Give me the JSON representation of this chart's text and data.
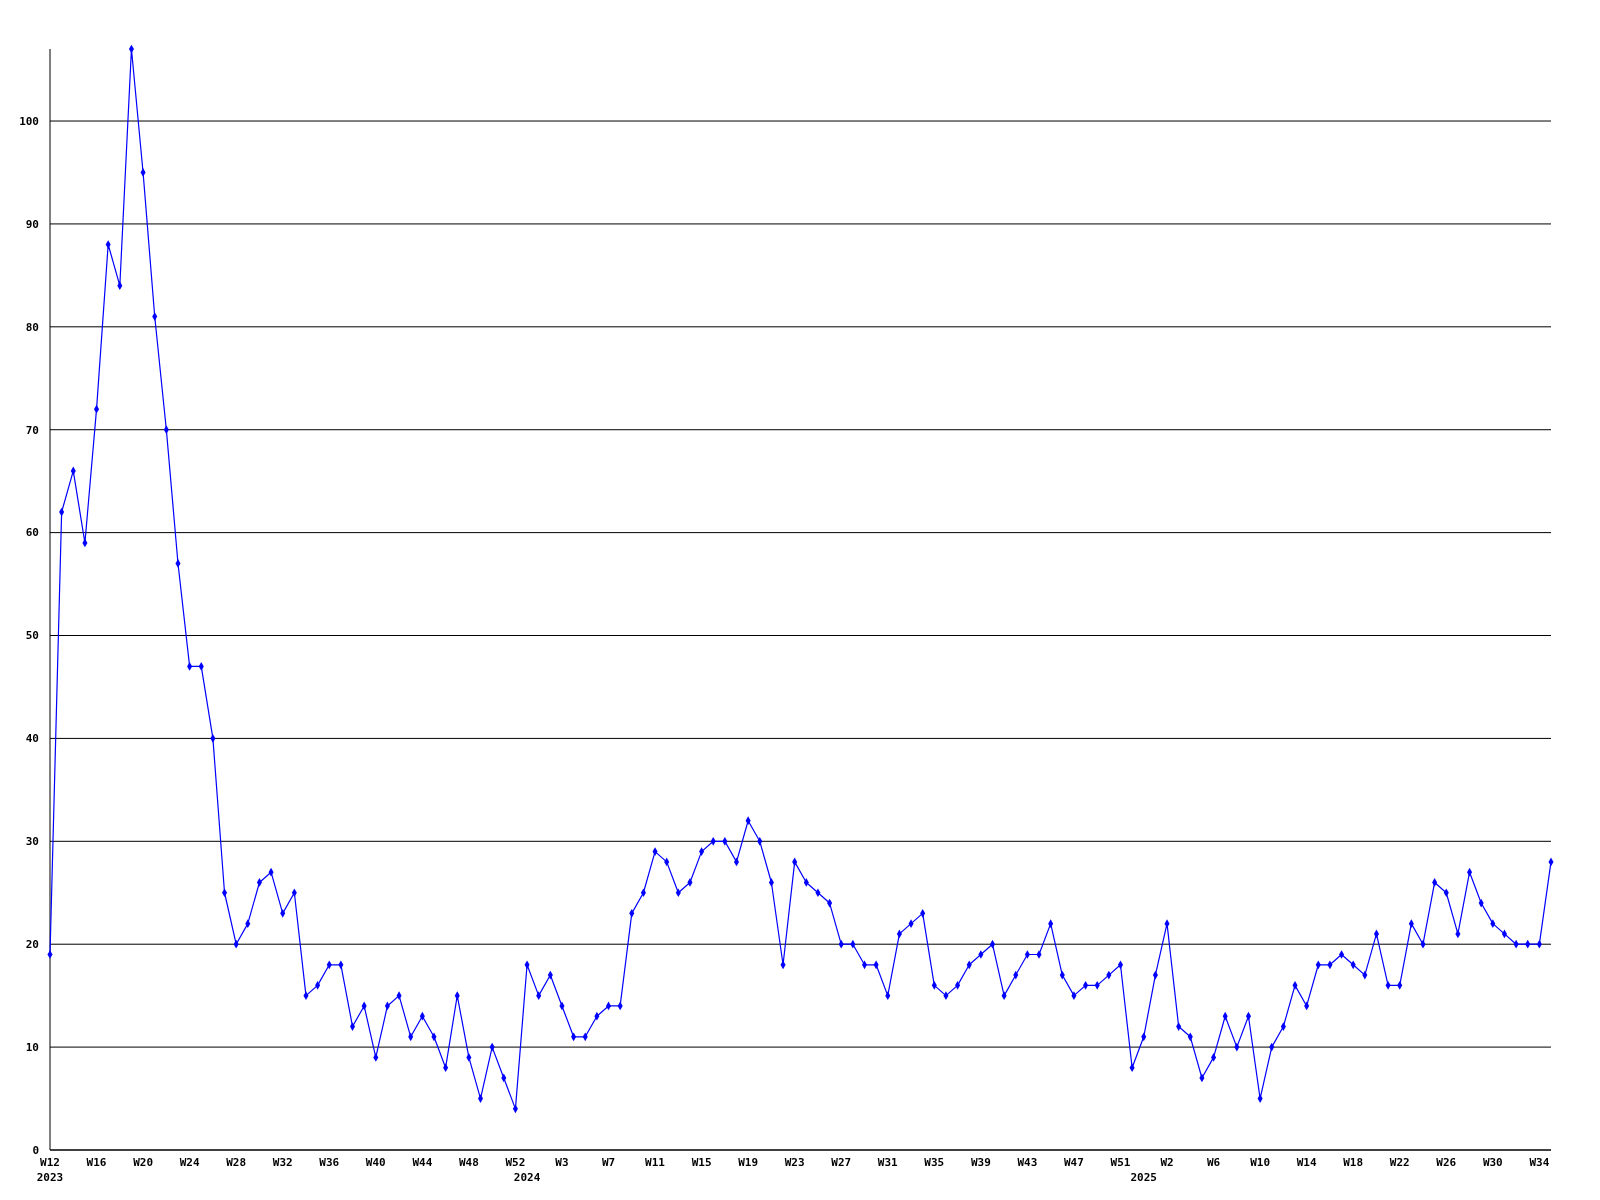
{
  "chart_data": {
    "type": "line",
    "categories": [
      "W12\n2023",
      null,
      null,
      null,
      "W16",
      null,
      null,
      null,
      "W20",
      null,
      null,
      null,
      "W24",
      null,
      null,
      null,
      "W28",
      null,
      null,
      null,
      "W32",
      null,
      null,
      null,
      "W36",
      null,
      null,
      null,
      "W40",
      null,
      null,
      null,
      "W44",
      null,
      null,
      null,
      "W48",
      null,
      null,
      null,
      "W52",
      "\n2024",
      null,
      null,
      "W3",
      null,
      null,
      null,
      "W7",
      null,
      null,
      null,
      "W11",
      null,
      null,
      null,
      "W15",
      null,
      null,
      null,
      "W19",
      null,
      null,
      null,
      "W23",
      null,
      null,
      null,
      "W27",
      null,
      null,
      null,
      "W31",
      null,
      null,
      null,
      "W35",
      null,
      null,
      null,
      "W39",
      null,
      null,
      null,
      "W43",
      null,
      null,
      null,
      "W47",
      null,
      null,
      null,
      "W51",
      null,
      "\n2025",
      null,
      "W2",
      null,
      null,
      null,
      "W6",
      null,
      null,
      null,
      "W10",
      null,
      null,
      null,
      "W14",
      null,
      null,
      null,
      "W18",
      null,
      null,
      null,
      "W22",
      null,
      null,
      null,
      "W26",
      null,
      null,
      null,
      "W30",
      null,
      null,
      null,
      "W34",
      null
    ],
    "series": [
      {
        "color": "#0000ff",
        "values": [
          19,
          62,
          66,
          59,
          72,
          88,
          84,
          107,
          95,
          81,
          70,
          57,
          47,
          47,
          40,
          25,
          20,
          22,
          26,
          27,
          23,
          25,
          15,
          16,
          18,
          18,
          12,
          14,
          9,
          14,
          15,
          11,
          13,
          11,
          8,
          15,
          9,
          5,
          10,
          7,
          4,
          18,
          15,
          17,
          14,
          11,
          11,
          13,
          14,
          14,
          23,
          25,
          29,
          28,
          25,
          26,
          29,
          30,
          30,
          28,
          32,
          30,
          26,
          18,
          28,
          26,
          25,
          24,
          20,
          20,
          18,
          18,
          15,
          21,
          22,
          23,
          16,
          15,
          16,
          18,
          19,
          20,
          15,
          17,
          19,
          19,
          22,
          17,
          15,
          16,
          16,
          17,
          18,
          8,
          11,
          17,
          22,
          12,
          11,
          7,
          9,
          13,
          10,
          13,
          5,
          10,
          12,
          16,
          14,
          18,
          18,
          19,
          18,
          17,
          21,
          16,
          16,
          22,
          20,
          26,
          25,
          21,
          27,
          24,
          22,
          21,
          20,
          20,
          20,
          28
        ]
      }
    ],
    "ylim": [
      0,
      107
    ],
    "yticks": [
      0,
      10,
      20,
      30,
      40,
      50,
      60,
      70,
      80,
      90,
      100
    ],
    "grid": "y",
    "marker": "diamond",
    "line_style": "solid"
  }
}
